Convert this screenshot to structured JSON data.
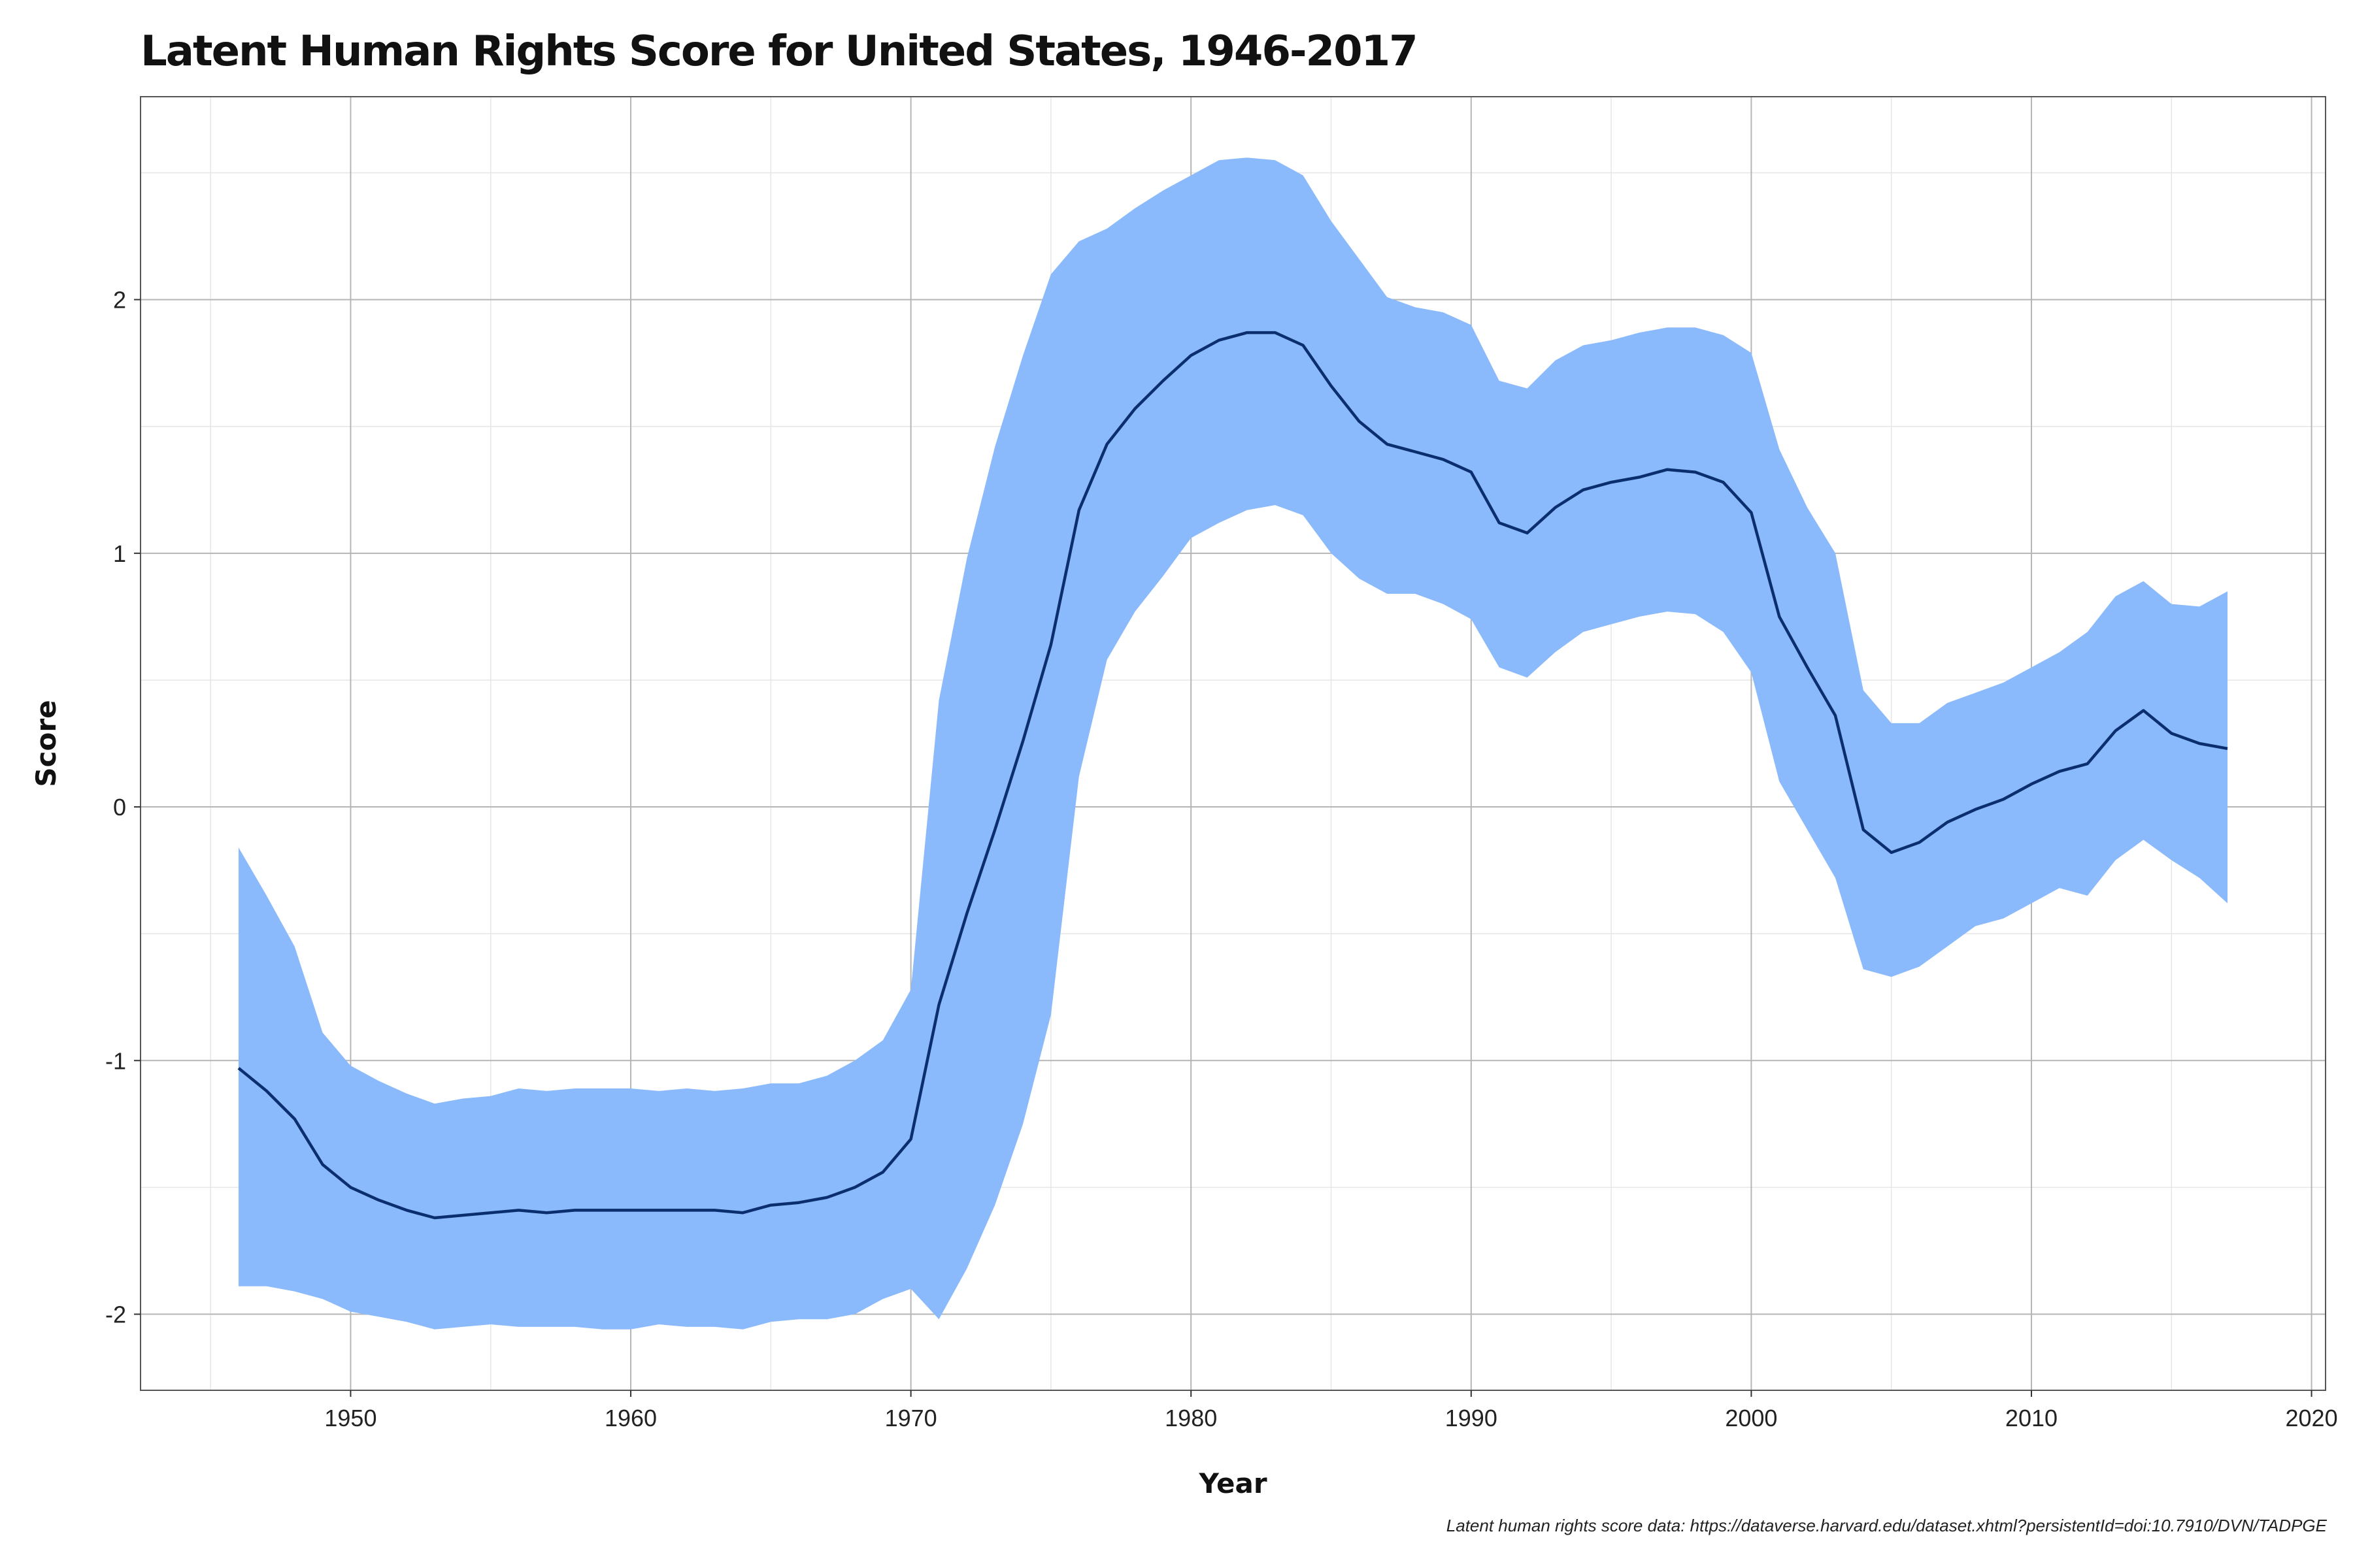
{
  "title": "Latent Human Rights Score for United States, 1946-2017",
  "caption": "Latent human rights score data: https://dataverse.harvard.edu/dataset.xhtml?persistentId=doi:10.7910/DVN/TADPGE",
  "colors": {
    "band": "#8bbafc",
    "line": "#0b2f6e",
    "grid_major": "#b5b5b5",
    "grid_minor": "#e6e6e6",
    "border": "#555555"
  },
  "chart_data": {
    "type": "line",
    "title": "Latent Human Rights Score for United States, 1946-2017",
    "xlabel": "Year",
    "ylabel": "Score",
    "xlim": [
      1942.5,
      2020.5
    ],
    "ylim": [
      -2.3,
      2.8
    ],
    "xticks": [
      1950,
      1960,
      1970,
      1980,
      1990,
      2000,
      2010,
      2020
    ],
    "yticks": [
      -2,
      -1,
      0,
      1,
      2
    ],
    "grid": true,
    "legend": "none",
    "x": [
      1946,
      1947,
      1948,
      1949,
      1950,
      1951,
      1952,
      1953,
      1954,
      1955,
      1956,
      1957,
      1958,
      1959,
      1960,
      1961,
      1962,
      1963,
      1964,
      1965,
      1966,
      1967,
      1968,
      1969,
      1970,
      1971,
      1972,
      1973,
      1974,
      1975,
      1976,
      1977,
      1978,
      1979,
      1980,
      1981,
      1982,
      1983,
      1984,
      1985,
      1986,
      1987,
      1988,
      1989,
      1990,
      1991,
      1992,
      1993,
      1994,
      1995,
      1996,
      1997,
      1998,
      1999,
      2000,
      2001,
      2002,
      2003,
      2004,
      2005,
      2006,
      2007,
      2008,
      2009,
      2010,
      2011,
      2012,
      2013,
      2014,
      2015,
      2016,
      2017
    ],
    "series": [
      {
        "values": [
          -1.03,
          -1.12,
          -1.23,
          -1.41,
          -1.5,
          -1.55,
          -1.59,
          -1.62,
          -1.61,
          -1.6,
          -1.59,
          -1.6,
          -1.59,
          -1.59,
          -1.59,
          -1.59,
          -1.59,
          -1.59,
          -1.6,
          -1.57,
          -1.56,
          -1.54,
          -1.5,
          -1.44,
          -1.31,
          -0.78,
          -0.42,
          -0.09,
          0.26,
          0.64,
          1.17,
          1.43,
          1.57,
          1.68,
          1.78,
          1.84,
          1.87,
          1.87,
          1.82,
          1.66,
          1.52,
          1.43,
          1.4,
          1.37,
          1.32,
          1.12,
          1.08,
          1.18,
          1.25,
          1.28,
          1.3,
          1.33,
          1.32,
          1.28,
          1.16,
          0.75,
          0.55,
          0.36,
          -0.09,
          -0.18,
          -0.14,
          -0.06,
          -0.01,
          0.03,
          0.09,
          0.14,
          0.17,
          0.3,
          0.38,
          0.29,
          0.25,
          0.23
        ],
        "lower": [
          -1.89,
          -1.89,
          -1.91,
          -1.94,
          -1.99,
          -2.01,
          -2.03,
          -2.06,
          -2.05,
          -2.04,
          -2.05,
          -2.05,
          -2.05,
          -2.06,
          -2.06,
          -2.04,
          -2.05,
          -2.05,
          -2.06,
          -2.03,
          -2.02,
          -2.02,
          -2.0,
          -1.94,
          -1.9,
          -2.02,
          -1.82,
          -1.57,
          -1.25,
          -0.82,
          0.12,
          0.58,
          0.77,
          0.91,
          1.06,
          1.12,
          1.17,
          1.19,
          1.15,
          1.0,
          0.9,
          0.84,
          0.84,
          0.8,
          0.74,
          0.55,
          0.51,
          0.61,
          0.69,
          0.72,
          0.75,
          0.77,
          0.76,
          0.69,
          0.53,
          0.1,
          -0.09,
          -0.28,
          -0.64,
          -0.67,
          -0.63,
          -0.55,
          -0.47,
          -0.44,
          -0.38,
          -0.32,
          -0.35,
          -0.21,
          -0.13,
          -0.21,
          -0.28,
          -0.38
        ],
        "upper": [
          -0.16,
          -0.35,
          -0.55,
          -0.89,
          -1.02,
          -1.08,
          -1.13,
          -1.17,
          -1.15,
          -1.14,
          -1.11,
          -1.12,
          -1.11,
          -1.11,
          -1.11,
          -1.12,
          -1.11,
          -1.12,
          -1.11,
          -1.09,
          -1.09,
          -1.06,
          -1.0,
          -0.92,
          -0.72,
          0.42,
          0.98,
          1.42,
          1.78,
          2.1,
          2.23,
          2.28,
          2.36,
          2.43,
          2.49,
          2.55,
          2.56,
          2.55,
          2.49,
          2.31,
          2.16,
          2.01,
          1.97,
          1.95,
          1.9,
          1.68,
          1.65,
          1.76,
          1.82,
          1.84,
          1.87,
          1.89,
          1.89,
          1.86,
          1.79,
          1.41,
          1.18,
          1.0,
          0.46,
          0.33,
          0.33,
          0.41,
          0.45,
          0.49,
          0.55,
          0.61,
          0.69,
          0.83,
          0.89,
          0.8,
          0.79,
          0.85
        ]
      }
    ]
  }
}
